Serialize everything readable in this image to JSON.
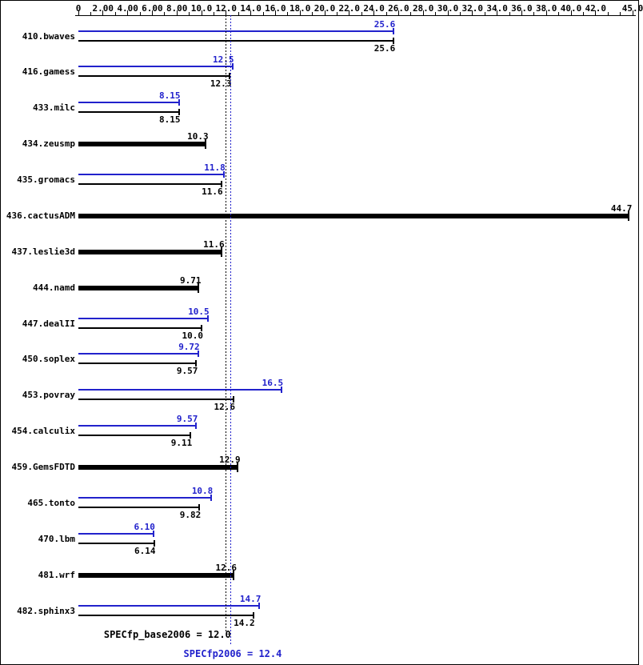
{
  "chart_data": {
    "type": "bar",
    "orientation": "horizontal",
    "title": "",
    "xlabel": "",
    "ylabel": "",
    "xlim": [
      0,
      45
    ],
    "minor_tick_step": 1,
    "grid": false,
    "axis_tick_labels": [
      {
        "value": 0,
        "label": "0"
      },
      {
        "value": 2,
        "label": "2.00"
      },
      {
        "value": 4,
        "label": "4.00"
      },
      {
        "value": 6,
        "label": "6.00"
      },
      {
        "value": 8,
        "label": "8.00"
      },
      {
        "value": 10,
        "label": "10.0"
      },
      {
        "value": 12,
        "label": "12.0"
      },
      {
        "value": 14,
        "label": "14.0"
      },
      {
        "value": 16,
        "label": "16.0"
      },
      {
        "value": 18,
        "label": "18.0"
      },
      {
        "value": 20,
        "label": "20.0"
      },
      {
        "value": 22,
        "label": "22.0"
      },
      {
        "value": 24,
        "label": "24.0"
      },
      {
        "value": 26,
        "label": "26.0"
      },
      {
        "value": 28,
        "label": "28.0"
      },
      {
        "value": 30,
        "label": "30.0"
      },
      {
        "value": 32,
        "label": "32.0"
      },
      {
        "value": 34,
        "label": "34.0"
      },
      {
        "value": 36,
        "label": "36.0"
      },
      {
        "value": 38,
        "label": "38.0"
      },
      {
        "value": 40,
        "label": "40.0"
      },
      {
        "value": 42,
        "label": "42.0"
      },
      {
        "value": 45,
        "label": "45.0"
      }
    ],
    "series_meaning": {
      "peak": "SPECfp2006 (blue, upper bar)",
      "base": "SPECfp_base2006 (black, lower bar; single thick bar when only one result shown)"
    },
    "benchmarks": [
      {
        "name": "410.bwaves",
        "peak": 25.6,
        "peak_label": "25.6",
        "base": 25.6,
        "base_label": "25.6",
        "single": false
      },
      {
        "name": "416.gamess",
        "peak": 12.5,
        "peak_label": "12.5",
        "base": 12.3,
        "base_label": "12.3",
        "single": false
      },
      {
        "name": "433.milc",
        "peak": 8.15,
        "peak_label": "8.15",
        "base": 8.15,
        "base_label": "8.15",
        "single": false
      },
      {
        "name": "434.zeusmp",
        "peak": null,
        "peak_label": null,
        "base": 10.3,
        "base_label": "10.3",
        "single": true
      },
      {
        "name": "435.gromacs",
        "peak": 11.8,
        "peak_label": "11.8",
        "base": 11.6,
        "base_label": "11.6",
        "single": false
      },
      {
        "name": "436.cactusADM",
        "peak": null,
        "peak_label": null,
        "base": 44.7,
        "base_label": "44.7",
        "single": true
      },
      {
        "name": "437.leslie3d",
        "peak": null,
        "peak_label": null,
        "base": 11.6,
        "base_label": "11.6",
        "single": true
      },
      {
        "name": "444.namd",
        "peak": null,
        "peak_label": null,
        "base": 9.71,
        "base_label": "9.71",
        "single": true
      },
      {
        "name": "447.dealII",
        "peak": 10.5,
        "peak_label": "10.5",
        "base": 10.0,
        "base_label": "10.0",
        "single": false
      },
      {
        "name": "450.soplex",
        "peak": 9.72,
        "peak_label": "9.72",
        "base": 9.57,
        "base_label": "9.57",
        "single": false
      },
      {
        "name": "453.povray",
        "peak": 16.5,
        "peak_label": "16.5",
        "base": 12.6,
        "base_label": "12.6",
        "single": false
      },
      {
        "name": "454.calculix",
        "peak": 9.57,
        "peak_label": "9.57",
        "base": 9.11,
        "base_label": "9.11",
        "single": false
      },
      {
        "name": "459.GemsFDTD",
        "peak": null,
        "peak_label": null,
        "base": 12.9,
        "base_label": "12.9",
        "single": true
      },
      {
        "name": "465.tonto",
        "peak": 10.8,
        "peak_label": "10.8",
        "base": 9.82,
        "base_label": "9.82",
        "single": false
      },
      {
        "name": "470.lbm",
        "peak": 6.1,
        "peak_label": "6.10",
        "base": 6.14,
        "base_label": "6.14",
        "single": false
      },
      {
        "name": "481.wrf",
        "peak": null,
        "peak_label": null,
        "base": 12.6,
        "base_label": "12.6",
        "single": true
      },
      {
        "name": "482.sphinx3",
        "peak": 14.7,
        "peak_label": "14.7",
        "base": 14.2,
        "base_label": "14.2",
        "single": false
      }
    ],
    "means": {
      "base_label": "SPECfp_base2006 = 12.0",
      "base_value": 12.0,
      "peak_label": "SPECfp2006 = 12.4",
      "peak_value": 12.4
    },
    "colors": {
      "base": "#000000",
      "peak": "#2222cc"
    }
  }
}
